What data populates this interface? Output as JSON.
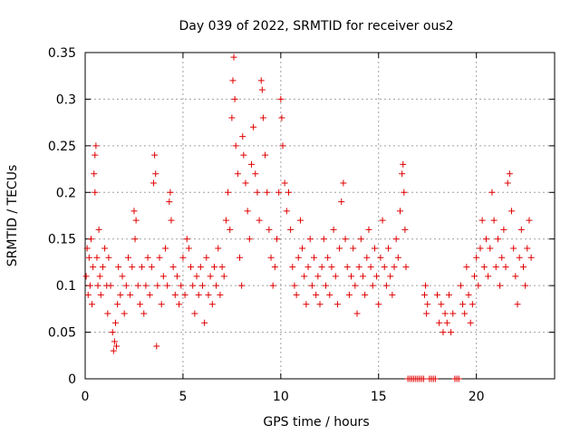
{
  "chart_data": {
    "type": "scatter",
    "title": "Day 039 of 2022, SRMTID for receiver ous2",
    "xlabel": "GPS time / hours",
    "ylabel": "SRMTID / TECUs",
    "xlim": [
      0,
      24
    ],
    "ylim": [
      0,
      0.35
    ],
    "xticks": [
      0,
      5,
      10,
      15,
      20
    ],
    "yticks": [
      0,
      0.05,
      0.1,
      0.15,
      0.2,
      0.25,
      0.3,
      0.35
    ],
    "grid": true,
    "marker": "+",
    "color": "#e00000",
    "series": [
      {
        "name": "ous2",
        "points": [
          [
            0.05,
            0.11
          ],
          [
            0.1,
            0.14
          ],
          [
            0.15,
            0.09
          ],
          [
            0.2,
            0.13
          ],
          [
            0.25,
            0.1
          ],
          [
            0.3,
            0.15
          ],
          [
            0.35,
            0.08
          ],
          [
            0.4,
            0.12
          ],
          [
            0.45,
            0.22
          ],
          [
            0.5,
            0.24
          ],
          [
            0.5,
            0.2
          ],
          [
            0.55,
            0.25
          ],
          [
            0.6,
            0.13
          ],
          [
            0.65,
            0.1
          ],
          [
            0.7,
            0.16
          ],
          [
            0.75,
            0.11
          ],
          [
            0.8,
            0.09
          ],
          [
            0.9,
            0.12
          ],
          [
            1.0,
            0.14
          ],
          [
            1.1,
            0.1
          ],
          [
            1.15,
            0.07
          ],
          [
            1.2,
            0.13
          ],
          [
            1.3,
            0.1
          ],
          [
            1.4,
            0.05
          ],
          [
            1.45,
            0.03
          ],
          [
            1.5,
            0.04
          ],
          [
            1.55,
            0.06
          ],
          [
            1.6,
            0.035
          ],
          [
            1.65,
            0.08
          ],
          [
            1.7,
            0.12
          ],
          [
            1.8,
            0.09
          ],
          [
            1.9,
            0.11
          ],
          [
            2.0,
            0.07
          ],
          [
            2.1,
            0.1
          ],
          [
            2.2,
            0.13
          ],
          [
            2.3,
            0.09
          ],
          [
            2.4,
            0.12
          ],
          [
            2.5,
            0.18
          ],
          [
            2.55,
            0.15
          ],
          [
            2.6,
            0.17
          ],
          [
            2.7,
            0.1
          ],
          [
            2.8,
            0.08
          ],
          [
            2.9,
            0.12
          ],
          [
            3.0,
            0.07
          ],
          [
            3.1,
            0.1
          ],
          [
            3.2,
            0.13
          ],
          [
            3.3,
            0.09
          ],
          [
            3.4,
            0.12
          ],
          [
            3.5,
            0.21
          ],
          [
            3.55,
            0.24
          ],
          [
            3.6,
            0.22
          ],
          [
            3.65,
            0.035
          ],
          [
            3.7,
            0.1
          ],
          [
            3.8,
            0.13
          ],
          [
            3.9,
            0.08
          ],
          [
            4.0,
            0.11
          ],
          [
            4.1,
            0.14
          ],
          [
            4.2,
            0.1
          ],
          [
            4.3,
            0.19
          ],
          [
            4.35,
            0.2
          ],
          [
            4.4,
            0.17
          ],
          [
            4.5,
            0.12
          ],
          [
            4.6,
            0.09
          ],
          [
            4.7,
            0.11
          ],
          [
            4.8,
            0.08
          ],
          [
            4.9,
            0.1
          ],
          [
            5.0,
            0.13
          ],
          [
            5.1,
            0.09
          ],
          [
            5.2,
            0.15
          ],
          [
            5.3,
            0.14
          ],
          [
            5.4,
            0.12
          ],
          [
            5.5,
            0.1
          ],
          [
            5.6,
            0.07
          ],
          [
            5.7,
            0.11
          ],
          [
            5.8,
            0.09
          ],
          [
            5.9,
            0.12
          ],
          [
            6.0,
            0.1
          ],
          [
            6.1,
            0.06
          ],
          [
            6.2,
            0.13
          ],
          [
            6.3,
            0.09
          ],
          [
            6.4,
            0.11
          ],
          [
            6.5,
            0.08
          ],
          [
            6.6,
            0.12
          ],
          [
            6.7,
            0.1
          ],
          [
            6.8,
            0.14
          ],
          [
            6.9,
            0.09
          ],
          [
            7.0,
            0.12
          ],
          [
            7.1,
            0.11
          ],
          [
            7.2,
            0.17
          ],
          [
            7.3,
            0.2
          ],
          [
            7.4,
            0.16
          ],
          [
            7.5,
            0.28
          ],
          [
            7.55,
            0.32
          ],
          [
            7.6,
            0.345
          ],
          [
            7.65,
            0.3
          ],
          [
            7.7,
            0.25
          ],
          [
            7.8,
            0.22
          ],
          [
            7.9,
            0.13
          ],
          [
            8.0,
            0.1
          ],
          [
            8.05,
            0.26
          ],
          [
            8.1,
            0.24
          ],
          [
            8.2,
            0.21
          ],
          [
            8.3,
            0.18
          ],
          [
            8.4,
            0.15
          ],
          [
            8.5,
            0.23
          ],
          [
            8.6,
            0.27
          ],
          [
            8.7,
            0.22
          ],
          [
            8.8,
            0.2
          ],
          [
            8.9,
            0.17
          ],
          [
            9.0,
            0.32
          ],
          [
            9.05,
            0.31
          ],
          [
            9.1,
            0.28
          ],
          [
            9.2,
            0.24
          ],
          [
            9.3,
            0.2
          ],
          [
            9.4,
            0.16
          ],
          [
            9.5,
            0.13
          ],
          [
            9.6,
            0.1
          ],
          [
            9.7,
            0.12
          ],
          [
            9.8,
            0.15
          ],
          [
            9.9,
            0.2
          ],
          [
            10.0,
            0.3
          ],
          [
            10.05,
            0.28
          ],
          [
            10.1,
            0.25
          ],
          [
            10.2,
            0.21
          ],
          [
            10.3,
            0.18
          ],
          [
            10.4,
            0.2
          ],
          [
            10.5,
            0.16
          ],
          [
            10.6,
            0.12
          ],
          [
            10.7,
            0.1
          ],
          [
            10.8,
            0.09
          ],
          [
            10.9,
            0.13
          ],
          [
            11.0,
            0.17
          ],
          [
            11.1,
            0.14
          ],
          [
            11.2,
            0.11
          ],
          [
            11.3,
            0.08
          ],
          [
            11.4,
            0.12
          ],
          [
            11.5,
            0.15
          ],
          [
            11.6,
            0.1
          ],
          [
            11.7,
            0.13
          ],
          [
            11.8,
            0.09
          ],
          [
            11.9,
            0.11
          ],
          [
            12.0,
            0.08
          ],
          [
            12.1,
            0.12
          ],
          [
            12.2,
            0.15
          ],
          [
            12.3,
            0.1
          ],
          [
            12.4,
            0.13
          ],
          [
            12.5,
            0.09
          ],
          [
            12.6,
            0.12
          ],
          [
            12.7,
            0.16
          ],
          [
            12.8,
            0.11
          ],
          [
            12.9,
            0.08
          ],
          [
            13.0,
            0.14
          ],
          [
            13.1,
            0.19
          ],
          [
            13.2,
            0.21
          ],
          [
            13.3,
            0.15
          ],
          [
            13.4,
            0.12
          ],
          [
            13.5,
            0.09
          ],
          [
            13.6,
            0.11
          ],
          [
            13.7,
            0.14
          ],
          [
            13.8,
            0.1
          ],
          [
            13.9,
            0.07
          ],
          [
            14.0,
            0.12
          ],
          [
            14.1,
            0.15
          ],
          [
            14.2,
            0.11
          ],
          [
            14.3,
            0.09
          ],
          [
            14.4,
            0.13
          ],
          [
            14.5,
            0.16
          ],
          [
            14.6,
            0.12
          ],
          [
            14.7,
            0.1
          ],
          [
            14.8,
            0.14
          ],
          [
            14.9,
            0.11
          ],
          [
            15.0,
            0.08
          ],
          [
            15.1,
            0.13
          ],
          [
            15.2,
            0.17
          ],
          [
            15.3,
            0.12
          ],
          [
            15.4,
            0.1
          ],
          [
            15.5,
            0.14
          ],
          [
            15.6,
            0.11
          ],
          [
            15.7,
            0.09
          ],
          [
            15.8,
            0.12
          ],
          [
            15.9,
            0.15
          ],
          [
            16.0,
            0.13
          ],
          [
            16.1,
            0.18
          ],
          [
            16.2,
            0.22
          ],
          [
            16.25,
            0.23
          ],
          [
            16.3,
            0.2
          ],
          [
            16.35,
            0.16
          ],
          [
            16.4,
            0.12
          ],
          [
            16.5,
            0.0
          ],
          [
            16.6,
            0.0
          ],
          [
            16.7,
            0.0
          ],
          [
            16.8,
            0.0
          ],
          [
            16.9,
            0.0
          ],
          [
            17.0,
            0.0
          ],
          [
            17.1,
            0.0
          ],
          [
            17.2,
            0.0
          ],
          [
            17.3,
            0.0
          ],
          [
            17.35,
            0.09
          ],
          [
            17.4,
            0.1
          ],
          [
            17.45,
            0.07
          ],
          [
            17.5,
            0.08
          ],
          [
            17.6,
            0.0
          ],
          [
            17.7,
            0.0
          ],
          [
            17.8,
            0.0
          ],
          [
            17.9,
            0.0
          ],
          [
            18.0,
            0.09
          ],
          [
            18.1,
            0.06
          ],
          [
            18.2,
            0.08
          ],
          [
            18.3,
            0.05
          ],
          [
            18.4,
            0.07
          ],
          [
            18.5,
            0.06
          ],
          [
            18.6,
            0.09
          ],
          [
            18.7,
            0.05
          ],
          [
            18.8,
            0.07
          ],
          [
            18.9,
            0.0
          ],
          [
            19.0,
            0.0
          ],
          [
            19.1,
            0.0
          ],
          [
            19.2,
            0.1
          ],
          [
            19.3,
            0.08
          ],
          [
            19.4,
            0.07
          ],
          [
            19.5,
            0.12
          ],
          [
            19.6,
            0.09
          ],
          [
            19.7,
            0.06
          ],
          [
            19.8,
            0.08
          ],
          [
            19.9,
            0.11
          ],
          [
            20.0,
            0.13
          ],
          [
            20.1,
            0.1
          ],
          [
            20.2,
            0.14
          ],
          [
            20.3,
            0.17
          ],
          [
            20.4,
            0.12
          ],
          [
            20.5,
            0.15
          ],
          [
            20.6,
            0.11
          ],
          [
            20.7,
            0.14
          ],
          [
            20.8,
            0.2
          ],
          [
            20.9,
            0.17
          ],
          [
            21.0,
            0.12
          ],
          [
            21.1,
            0.15
          ],
          [
            21.2,
            0.1
          ],
          [
            21.3,
            0.13
          ],
          [
            21.4,
            0.16
          ],
          [
            21.5,
            0.12
          ],
          [
            21.6,
            0.21
          ],
          [
            21.7,
            0.22
          ],
          [
            21.8,
            0.18
          ],
          [
            21.9,
            0.14
          ],
          [
            22.0,
            0.11
          ],
          [
            22.1,
            0.08
          ],
          [
            22.2,
            0.13
          ],
          [
            22.3,
            0.16
          ],
          [
            22.4,
            0.12
          ],
          [
            22.5,
            0.1
          ],
          [
            22.6,
            0.14
          ],
          [
            22.7,
            0.17
          ],
          [
            22.8,
            0.13
          ]
        ]
      }
    ]
  }
}
